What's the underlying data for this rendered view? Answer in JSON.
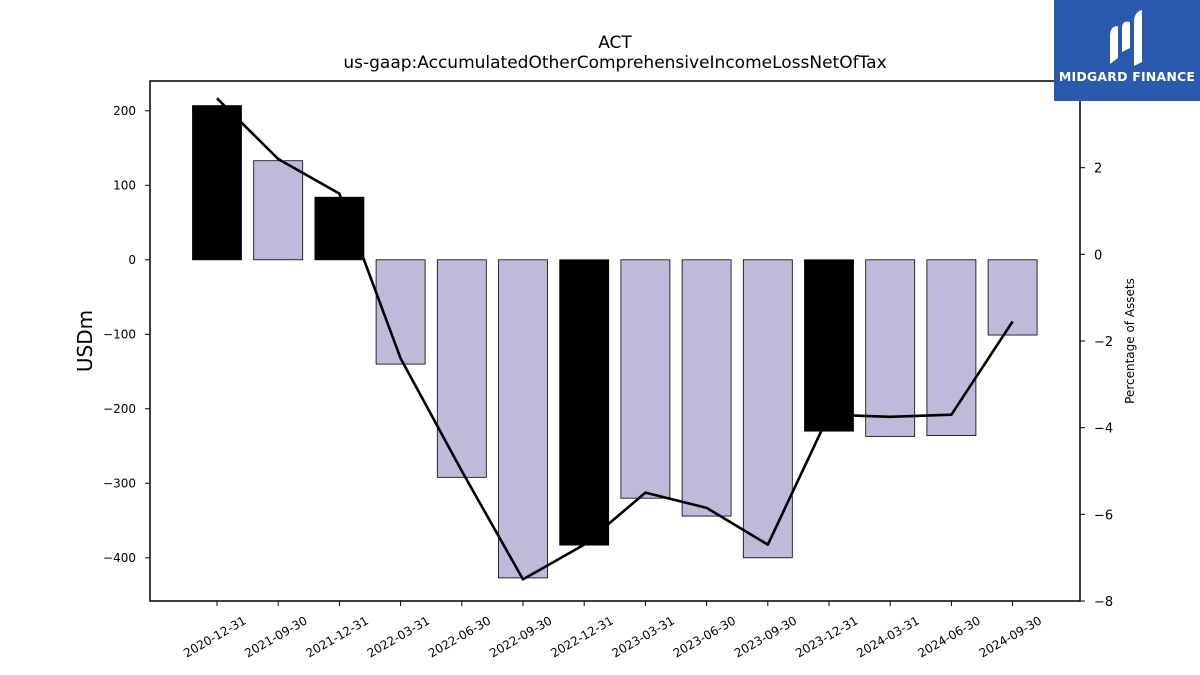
{
  "brand": {
    "name": "MIDGARD FINANCE",
    "bg_color": "#2a5aad"
  },
  "chart_data": {
    "type": "bar",
    "title": "ACT",
    "subtitle": "us-gaap:AccumulatedOtherComprehensiveIncomeLossNetOfTax",
    "ylabel": "USDm",
    "y2label": "Percentage of Assets",
    "categories": [
      "2020-12-31",
      "2021-09-30",
      "2021-12-31",
      "2022-03-31",
      "2022-06-30",
      "2022-09-30",
      "2022-12-31",
      "2023-03-31",
      "2023-06-30",
      "2023-09-30",
      "2023-12-31",
      "2024-03-31",
      "2024-06-30",
      "2024-09-30"
    ],
    "series": [
      {
        "kind": "bar",
        "axis": "left",
        "values": [
          207,
          133,
          84,
          -140,
          -292,
          -427,
          -383,
          -320,
          -344,
          -400,
          -230,
          -237,
          -236,
          -101
        ],
        "colors": [
          "#000000",
          "#bdbada",
          "#000000",
          "#bdbada",
          "#bdbada",
          "#bdbada",
          "#000000",
          "#bdbada",
          "#bdbada",
          "#bdbada",
          "#000000",
          "#bdbada",
          "#bdbada",
          "#bdbada"
        ]
      },
      {
        "kind": "line",
        "axis": "right",
        "color": "#000000",
        "values": [
          3.6,
          2.2,
          1.4,
          -2.4,
          -5.0,
          -7.5,
          -6.7,
          -5.5,
          -5.85,
          -6.7,
          -3.7,
          -3.75,
          -3.7,
          -1.55
        ]
      }
    ],
    "ylim": [
      -458,
      240
    ],
    "yticks": [
      -400,
      -300,
      -200,
      -100,
      0,
      100,
      200
    ],
    "ytick_labels": [
      "−400",
      "−300",
      "−200",
      "−100",
      "0",
      "100",
      "200"
    ],
    "y2lim": [
      -8,
      4
    ],
    "y2ticks": [
      -8,
      -6,
      -4,
      -2,
      0,
      2
    ],
    "y2tick_labels": [
      "−8",
      "−6",
      "−4",
      "−2",
      "0",
      "2"
    ],
    "grid": false,
    "legend": false
  }
}
